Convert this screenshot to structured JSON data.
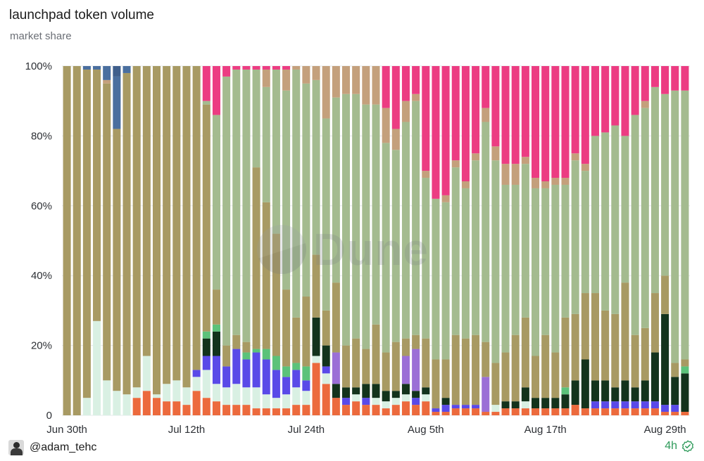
{
  "header": {
    "title": "launchpad token volume",
    "subtitle": "market share"
  },
  "footer": {
    "user": "@adam_tehc",
    "age": "4h"
  },
  "watermark": "Dune",
  "chart_data": {
    "type": "bar",
    "stacked": true,
    "normalized": true,
    "y_ticks": [
      "0",
      "20%",
      "40%",
      "60%",
      "80%",
      "100%"
    ],
    "ylim": [
      0,
      100
    ],
    "x_ticks": [
      {
        "index": 0,
        "label": "Jun 30th"
      },
      {
        "index": 12,
        "label": "Jul 12th"
      },
      {
        "index": 24,
        "label": "Jul 24th"
      },
      {
        "index": 36,
        "label": "Aug 5th"
      },
      {
        "index": 48,
        "label": "Aug 17th"
      },
      {
        "index": 60,
        "label": "Aug 29th"
      }
    ],
    "series_colors": {
      "orange": "#ec6a3d",
      "mint": "#d9f0e3",
      "blue_violet": "#5a4ae8",
      "dark_green": "#13331c",
      "green": "#5cc27a",
      "purple": "#9b6fd6",
      "olive": "#a89a63",
      "sage": "#a4bb8f",
      "pink": "#ec3c82",
      "tan": "#c4a07c",
      "steel": "#4a6f9f"
    },
    "series_order": [
      "orange",
      "mint",
      "blue_violet",
      "dark_green",
      "green",
      "purple",
      "olive",
      "sage",
      "tan",
      "steel",
      "pink"
    ],
    "bars": [
      {
        "olive": 100
      },
      {
        "olive": 100
      },
      {
        "mint": 5,
        "olive": 94,
        "steel": 1
      },
      {
        "mint": 27,
        "olive": 72,
        "steel": 1
      },
      {
        "mint": 10,
        "steel": 4,
        "olive": 85,
        "tan": 1
      },
      {
        "mint": 7,
        "steel": 15,
        "olive": 75,
        "steel2": 3
      },
      {
        "mint": 6,
        "steel": 2,
        "olive": 92
      },
      {
        "orange": 5,
        "mint": 3,
        "olive": 92
      },
      {
        "orange": 7,
        "mint": 10,
        "olive": 83
      },
      {
        "orange": 5,
        "mint": 1,
        "olive": 94
      },
      {
        "orange": 4,
        "mint": 5,
        "olive": 91
      },
      {
        "orange": 4,
        "mint": 6,
        "olive": 90
      },
      {
        "orange": 3,
        "mint": 5,
        "olive": 92
      },
      {
        "orange": 7,
        "mint": 4,
        "blue_violet": 2,
        "olive": 87
      },
      {
        "orange": 5,
        "mint": 8,
        "blue_violet": 4,
        "dark_green": 5,
        "green": 2,
        "olive": 65,
        "sage": 1,
        "pink": 10
      },
      {
        "orange": 4,
        "mint": 5,
        "blue_violet": 8,
        "green": 2,
        "olive": 10,
        "dark_green": 7,
        "sage": 50,
        "pink": 14
      },
      {
        "orange": 3,
        "mint": 5,
        "blue_violet": 6,
        "olive": 6,
        "sage": 77,
        "pink": 3
      },
      {
        "orange": 3,
        "mint": 6,
        "blue_violet": 10,
        "olive": 4,
        "sage": 76,
        "pink": 1
      },
      {
        "orange": 3,
        "mint": 5,
        "blue_violet": 8,
        "green": 2,
        "olive": 3,
        "sage": 78,
        "pink": 1
      },
      {
        "orange": 2,
        "mint": 6,
        "blue_violet": 10,
        "green": 1,
        "olive": 52,
        "sage": 28,
        "pink": 1
      },
      {
        "orange": 2,
        "mint": 4,
        "blue_violet": 10,
        "green": 3,
        "olive": 42,
        "tan": 5,
        "sage": 33,
        "pink": 1
      },
      {
        "orange": 2,
        "mint": 3,
        "blue_violet": 8,
        "green": 4,
        "olive": 35,
        "sage": 47,
        "pink": 1
      },
      {
        "orange": 2,
        "mint": 4,
        "blue_violet": 5,
        "green": 3,
        "olive": 22,
        "tan": 6,
        "sage": 57,
        "pink": 1
      },
      {
        "orange": 3,
        "mint": 5,
        "blue_violet": 5,
        "green": 2,
        "olive": 13,
        "sage": 71,
        "tan": 1
      },
      {
        "orange": 3,
        "mint": 4,
        "green": 4,
        "blue_violet": 3,
        "olive": 20,
        "sage": 61,
        "tan": 5
      },
      {
        "orange": 15,
        "mint": 2,
        "dark_green": 11,
        "olive": 18,
        "sage": 50,
        "tan": 4
      },
      {
        "orange": 9,
        "mint": 3,
        "blue_violet": 2,
        "dark_green": 6,
        "olive": 10,
        "sage": 55,
        "tan": 15
      },
      {
        "orange": 5,
        "purple": 9,
        "dark_green": 4,
        "olive": 20,
        "sage": 53,
        "tan": 9
      },
      {
        "orange": 3,
        "blue_violet": 2,
        "dark_green": 3,
        "olive": 12,
        "sage": 72,
        "tan": 8
      },
      {
        "orange": 4,
        "mint": 2,
        "dark_green": 2,
        "olive": 14,
        "sage": 70,
        "tan": 8
      },
      {
        "orange": 3,
        "blue_violet": 2,
        "dark_green": 4,
        "olive": 10,
        "sage": 70,
        "tan": 11
      },
      {
        "orange": 3,
        "mint": 2,
        "dark_green": 4,
        "olive": 17,
        "sage": 63,
        "tan": 11
      },
      {
        "orange": 2,
        "mint": 2,
        "dark_green": 3,
        "olive": 11,
        "sage": 60,
        "tan": 10,
        "pink": 12
      },
      {
        "orange": 3,
        "mint": 2,
        "dark_green": 2,
        "olive": 14,
        "sage": 55,
        "tan": 6,
        "pink": 18
      },
      {
        "orange": 4,
        "mint": 2,
        "dark_green": 3,
        "purple": 8,
        "olive": 5,
        "sage": 62,
        "tan": 6,
        "pink": 10
      },
      {
        "orange": 3,
        "blue_violet": 2,
        "dark_green": 2,
        "purple": 12,
        "olive": 4,
        "sage": 67,
        "tan": 2,
        "pink": 8
      },
      {
        "orange": 4,
        "mint": 2,
        "dark_green": 2,
        "olive": 14,
        "sage": 46,
        "tan": 2,
        "pink": 30
      },
      {
        "orange": 1,
        "blue_violet": 1,
        "olive": 14,
        "sage": 46,
        "pink": 38
      },
      {
        "orange": 1,
        "blue_violet": 2,
        "dark_green": 2,
        "olive": 11,
        "sage": 45,
        "tan": 2,
        "pink": 37
      },
      {
        "orange": 2,
        "blue_violet": 1,
        "olive": 20,
        "sage": 48,
        "tan": 2,
        "pink": 27
      },
      {
        "orange": 2,
        "blue_violet": 1,
        "olive": 19,
        "sage": 43,
        "tan": 2,
        "pink": 33
      },
      {
        "orange": 2,
        "blue_violet": 1,
        "olive": 20,
        "sage": 50,
        "tan": 2,
        "pink": 25
      },
      {
        "orange": 1,
        "purple": 10,
        "olive": 10,
        "sage": 63,
        "tan": 4,
        "pink": 12
      },
      {
        "orange": 1,
        "mint": 2,
        "olive": 12,
        "sage": 58,
        "tan": 4,
        "pink": 23
      },
      {
        "orange": 2,
        "dark_green": 2,
        "olive": 14,
        "sage": 48,
        "tan": 6,
        "pink": 28
      },
      {
        "orange": 2,
        "dark_green": 2,
        "olive": 19,
        "sage": 43,
        "tan": 6,
        "pink": 28
      },
      {
        "orange": 2,
        "mint": 2,
        "dark_green": 4,
        "olive": 20,
        "sage": 44,
        "tan": 2,
        "pink": 26
      },
      {
        "orange": 2,
        "dark_green": 3,
        "olive": 12,
        "sage": 48,
        "tan": 3,
        "pink": 32
      },
      {
        "orange": 2,
        "dark_green": 3,
        "olive": 18,
        "sage": 42,
        "tan": 2,
        "pink": 33
      },
      {
        "orange": 2,
        "dark_green": 3,
        "olive": 13,
        "sage": 48,
        "tan": 2,
        "pink": 32
      },
      {
        "orange": 2,
        "green": 2,
        "dark_green": 4,
        "olive": 20,
        "sage": 38,
        "tan": 2,
        "pink": 32
      },
      {
        "orange": 3,
        "dark_green": 7,
        "olive": 19,
        "sage": 44,
        "tan": 2,
        "pink": 25
      },
      {
        "orange": 2,
        "dark_green": 14,
        "olive": 19,
        "sage": 35,
        "tan": 2,
        "pink": 28
      },
      {
        "orange": 2,
        "blue_violet": 2,
        "dark_green": 6,
        "olive": 25,
        "sage": 45,
        "pink": 20
      },
      {
        "orange": 2,
        "blue_violet": 2,
        "dark_green": 6,
        "olive": 20,
        "sage": 51,
        "pink": 19
      },
      {
        "orange": 2,
        "blue_violet": 2,
        "dark_green": 4,
        "olive": 21,
        "sage": 54,
        "pink": 17
      },
      {
        "orange": 2,
        "blue_violet": 2,
        "dark_green": 6,
        "olive": 28,
        "sage": 42,
        "pink": 20
      },
      {
        "orange": 2,
        "blue_violet": 2,
        "dark_green": 4,
        "olive": 15,
        "sage": 63,
        "pink": 14
      },
      {
        "orange": 2,
        "blue_violet": 2,
        "dark_green": 6,
        "olive": 15,
        "sage": 63,
        "tan": 2,
        "pink": 10
      },
      {
        "orange": 2,
        "blue_violet": 2,
        "dark_green": 14,
        "olive": 17,
        "sage": 59,
        "pink": 6
      },
      {
        "orange": 1,
        "blue_violet": 2,
        "dark_green": 26,
        "olive": 11,
        "sage": 52,
        "pink": 8
      },
      {
        "orange": 1,
        "blue_violet": 2,
        "dark_green": 8,
        "olive": 4,
        "sage": 78,
        "pink": 7
      },
      {
        "orange": 1,
        "green": 2,
        "dark_green": 11,
        "olive": 2,
        "sage": 77,
        "pink": 7
      }
    ]
  }
}
